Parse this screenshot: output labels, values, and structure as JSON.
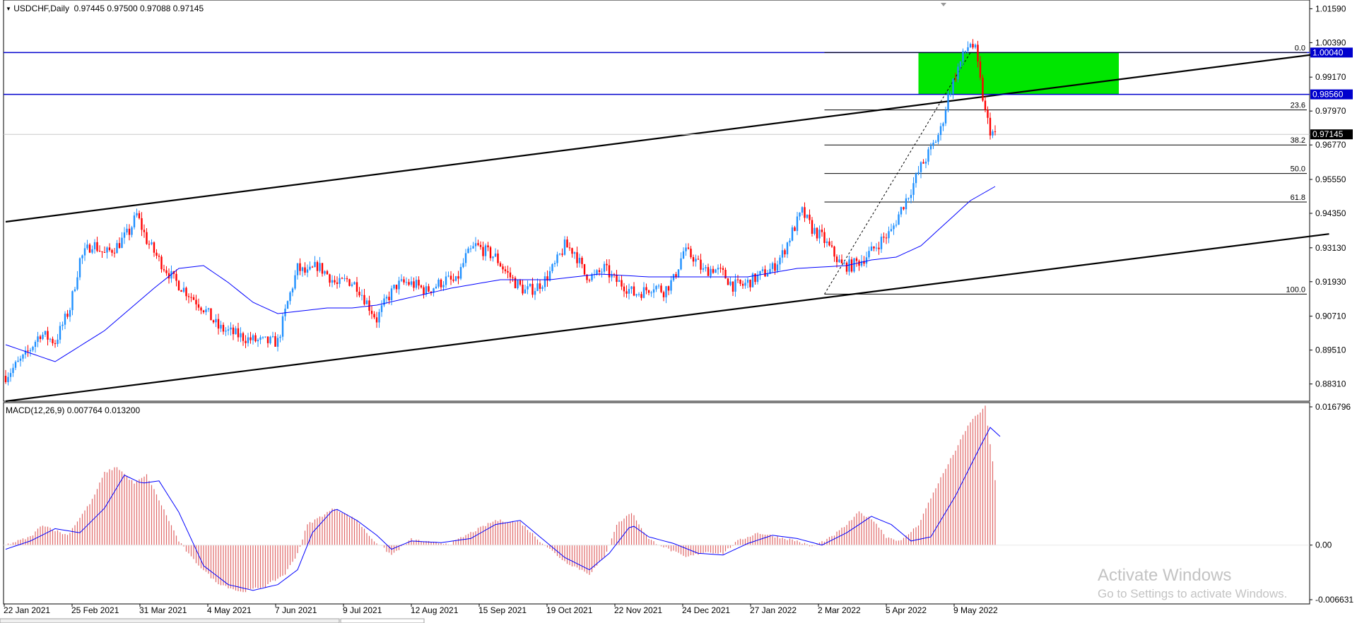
{
  "header": {
    "symbol_timeframe": "USDCHF,Daily",
    "ohlc": "0.97445 0.97500 0.97088 0.97145"
  },
  "macd": {
    "label": "MACD(12,26,9) 0.007764 0.013200",
    "scale": [
      "0.016796",
      "0.00",
      "-0.006631"
    ]
  },
  "watermark": {
    "title": "Activate Windows",
    "subtitle": "Go to Settings to activate Windows."
  },
  "colors": {
    "bull": "#1e90ff",
    "bear": "#ff0000",
    "ma": "#0000ff",
    "hline": "#0000cd",
    "zone": "#00e600",
    "macd_hist": "#e06666",
    "signal": "#0000ff"
  },
  "chart_data": [
    {
      "type": "candlestick",
      "symbol": "USDCHF",
      "timeframe": "Daily",
      "ylim": [
        0.877,
        1.019
      ],
      "price_ticks": [
        "1.01590",
        "1.00390",
        "0.99170",
        "0.97970",
        "0.96770",
        "0.95550",
        "0.94350",
        "0.93130",
        "0.91930",
        "0.90710",
        "0.89510",
        "0.88310"
      ],
      "date_ticks": [
        "22 Jan 2021",
        "25 Feb 2021",
        "31 Mar 2021",
        "4 May 2021",
        "7 Jun 2021",
        "9 Jul 2021",
        "12 Aug 2021",
        "15 Sep 2021",
        "19 Oct 2021",
        "22 Nov 2021",
        "24 Dec 2021",
        "27 Jan 2022",
        "2 Mar 2022",
        "5 Apr 2022",
        "9 May 2022"
      ],
      "close_path": [
        [
          0,
          0.886
        ],
        [
          8,
          0.893
        ],
        [
          14,
          0.901
        ],
        [
          20,
          0.898
        ],
        [
          26,
          0.91
        ],
        [
          30,
          0.927
        ],
        [
          35,
          0.933
        ],
        [
          40,
          0.929
        ],
        [
          45,
          0.932
        ],
        [
          50,
          0.937
        ],
        [
          53,
          0.943
        ],
        [
          57,
          0.934
        ],
        [
          62,
          0.927
        ],
        [
          68,
          0.92
        ],
        [
          74,
          0.915
        ],
        [
          80,
          0.91
        ],
        [
          86,
          0.903
        ],
        [
          92,
          0.901
        ],
        [
          98,
          0.899
        ],
        [
          104,
          0.898
        ],
        [
          110,
          0.898
        ],
        [
          114,
          0.912
        ],
        [
          118,
          0.924
        ],
        [
          122,
          0.922
        ],
        [
          126,
          0.925
        ],
        [
          130,
          0.922
        ],
        [
          134,
          0.918
        ],
        [
          138,
          0.92
        ],
        [
          142,
          0.918
        ],
        [
          146,
          0.912
        ],
        [
          150,
          0.906
        ],
        [
          154,
          0.913
        ],
        [
          158,
          0.918
        ],
        [
          162,
          0.919
        ],
        [
          166,
          0.918
        ],
        [
          170,
          0.916
        ],
        [
          174,
          0.918
        ],
        [
          178,
          0.92
        ],
        [
          182,
          0.919
        ],
        [
          186,
          0.928
        ],
        [
          190,
          0.932
        ],
        [
          194,
          0.93
        ],
        [
          198,
          0.928
        ],
        [
          202,
          0.923
        ],
        [
          206,
          0.919
        ],
        [
          210,
          0.916
        ],
        [
          214,
          0.917
        ],
        [
          218,
          0.92
        ],
        [
          222,
          0.925
        ],
        [
          226,
          0.932
        ],
        [
          230,
          0.93
        ],
        [
          234,
          0.922
        ],
        [
          238,
          0.921
        ],
        [
          242,
          0.924
        ],
        [
          246,
          0.92
        ],
        [
          250,
          0.918
        ],
        [
          254,
          0.915
        ],
        [
          258,
          0.916
        ],
        [
          262,
          0.918
        ],
        [
          266,
          0.916
        ],
        [
          270,
          0.92
        ],
        [
          274,
          0.93
        ],
        [
          278,
          0.928
        ],
        [
          282,
          0.923
        ],
        [
          286,
          0.924
        ],
        [
          290,
          0.922
        ],
        [
          294,
          0.918
        ],
        [
          298,
          0.918
        ],
        [
          302,
          0.92
        ],
        [
          306,
          0.922
        ],
        [
          310,
          0.924
        ],
        [
          314,
          0.929
        ],
        [
          318,
          0.937
        ],
        [
          322,
          0.944
        ],
        [
          326,
          0.938
        ],
        [
          330,
          0.935
        ],
        [
          334,
          0.93
        ],
        [
          338,
          0.925
        ],
        [
          342,
          0.925
        ],
        [
          346,
          0.927
        ],
        [
          350,
          0.93
        ],
        [
          354,
          0.934
        ],
        [
          358,
          0.937
        ],
        [
          362,
          0.945
        ],
        [
          366,
          0.952
        ],
        [
          370,
          0.96
        ],
        [
          374,
          0.966
        ],
        [
          378,
          0.973
        ],
        [
          381,
          0.985
        ],
        [
          385,
          0.995
        ],
        [
          388,
          1.001
        ],
        [
          390,
          1.004
        ],
        [
          392,
          1.001
        ],
        [
          394,
          0.99
        ],
        [
          396,
          0.979
        ],
        [
          398,
          0.973
        ],
        [
          400,
          0.971
        ]
      ],
      "ma_path": [
        [
          0,
          0.897
        ],
        [
          20,
          0.891
        ],
        [
          40,
          0.902
        ],
        [
          60,
          0.917
        ],
        [
          70,
          0.924
        ],
        [
          80,
          0.925
        ],
        [
          90,
          0.919
        ],
        [
          100,
          0.912
        ],
        [
          110,
          0.908
        ],
        [
          120,
          0.909
        ],
        [
          130,
          0.91
        ],
        [
          140,
          0.91
        ],
        [
          150,
          0.911
        ],
        [
          160,
          0.913
        ],
        [
          180,
          0.917
        ],
        [
          200,
          0.92
        ],
        [
          220,
          0.92
        ],
        [
          240,
          0.922
        ],
        [
          260,
          0.921
        ],
        [
          280,
          0.921
        ],
        [
          300,
          0.921
        ],
        [
          320,
          0.924
        ],
        [
          340,
          0.925
        ],
        [
          350,
          0.927
        ],
        [
          360,
          0.928
        ],
        [
          370,
          0.932
        ],
        [
          380,
          0.94
        ],
        [
          390,
          0.948
        ],
        [
          400,
          0.953
        ]
      ],
      "horizontal_levels": [
        "1.00040",
        "0.98560"
      ],
      "current_price": "0.97145",
      "fibonacci": [
        {
          "level": "0.0",
          "price": 1.0004
        },
        {
          "level": "23.6",
          "price": 0.9801
        },
        {
          "level": "38.2",
          "price": 0.9677
        },
        {
          "level": "50.0",
          "price": 0.9576
        },
        {
          "level": "61.8",
          "price": 0.9475
        },
        {
          "level": "100.0",
          "price": 0.9149
        }
      ],
      "channel_upper": [
        [
          0,
          0.9405
        ],
        [
          535,
          1.0004
        ]
      ],
      "channel_lower": [
        [
          0,
          0.877
        ],
        [
          535,
          0.9362
        ]
      ],
      "supply_zone": {
        "from_index": 369,
        "to_index": 450,
        "top": 1.0004,
        "bottom": 0.9856
      }
    },
    {
      "type": "bar",
      "name": "MACD(12,26,9)",
      "main": 0.007764,
      "signal": 0.0132,
      "ylim": [
        -0.006631,
        0.016796
      ],
      "hist_path": [
        [
          0,
          0.0
        ],
        [
          10,
          0.001
        ],
        [
          15,
          0.0025
        ],
        [
          20,
          0.0018
        ],
        [
          25,
          0.0012
        ],
        [
          35,
          0.0055
        ],
        [
          40,
          0.0088
        ],
        [
          45,
          0.0095
        ],
        [
          52,
          0.0075
        ],
        [
          57,
          0.0085
        ],
        [
          62,
          0.0055
        ],
        [
          70,
          0.0005
        ],
        [
          75,
          -0.0015
        ],
        [
          85,
          -0.0045
        ],
        [
          95,
          -0.0057
        ],
        [
          105,
          -0.005
        ],
        [
          113,
          -0.0035
        ],
        [
          118,
          -0.001
        ],
        [
          122,
          0.0025
        ],
        [
          133,
          0.0045
        ],
        [
          142,
          0.003
        ],
        [
          148,
          0.0008
        ],
        [
          156,
          -0.0012
        ],
        [
          164,
          0.0007
        ],
        [
          172,
          0.0003
        ],
        [
          180,
          0.0002
        ],
        [
          188,
          0.0015
        ],
        [
          198,
          0.003
        ],
        [
          208,
          0.0028
        ],
        [
          216,
          0.0005
        ],
        [
          226,
          -0.002
        ],
        [
          236,
          -0.0035
        ],
        [
          242,
          -0.0015
        ],
        [
          247,
          0.0025
        ],
        [
          253,
          0.004
        ],
        [
          260,
          0.0007
        ],
        [
          268,
          -0.0005
        ],
        [
          275,
          -0.0015
        ],
        [
          283,
          -0.0008
        ],
        [
          290,
          -0.001
        ],
        [
          296,
          0.0005
        ],
        [
          304,
          0.0015
        ],
        [
          312,
          0.001
        ],
        [
          320,
          0.0005
        ],
        [
          326,
          -0.0002
        ],
        [
          334,
          0.001
        ],
        [
          340,
          0.0025
        ],
        [
          345,
          0.004
        ],
        [
          351,
          0.003
        ],
        [
          356,
          0.001
        ],
        [
          362,
          0.0005
        ],
        [
          369,
          0.0025
        ],
        [
          376,
          0.007
        ],
        [
          383,
          0.011
        ],
        [
          390,
          0.015
        ],
        [
          396,
          0.0168
        ],
        [
          400,
          0.0078
        ]
      ],
      "signal_path": [
        [
          0,
          -0.0005
        ],
        [
          10,
          0.0005
        ],
        [
          20,
          0.002
        ],
        [
          30,
          0.0015
        ],
        [
          40,
          0.0045
        ],
        [
          48,
          0.0085
        ],
        [
          55,
          0.0075
        ],
        [
          62,
          0.0078
        ],
        [
          70,
          0.004
        ],
        [
          80,
          -0.0025
        ],
        [
          90,
          -0.0048
        ],
        [
          100,
          -0.0055
        ],
        [
          110,
          -0.0048
        ],
        [
          118,
          -0.003
        ],
        [
          124,
          0.0015
        ],
        [
          133,
          0.0045
        ],
        [
          142,
          0.003
        ],
        [
          150,
          0.0012
        ],
        [
          156,
          -0.0005
        ],
        [
          164,
          0.0005
        ],
        [
          176,
          0.0003
        ],
        [
          188,
          0.0008
        ],
        [
          198,
          0.0025
        ],
        [
          208,
          0.003
        ],
        [
          216,
          0.001
        ],
        [
          226,
          -0.0015
        ],
        [
          236,
          -0.003
        ],
        [
          244,
          -0.001
        ],
        [
          253,
          0.0025
        ],
        [
          260,
          0.001
        ],
        [
          270,
          0.0002
        ],
        [
          280,
          -0.001
        ],
        [
          290,
          -0.0012
        ],
        [
          300,
          0.0002
        ],
        [
          310,
          0.0012
        ],
        [
          320,
          0.0008
        ],
        [
          330,
          0.0
        ],
        [
          340,
          0.0015
        ],
        [
          350,
          0.0035
        ],
        [
          358,
          0.0025
        ],
        [
          366,
          0.0005
        ],
        [
          374,
          0.001
        ],
        [
          384,
          0.006
        ],
        [
          394,
          0.012
        ],
        [
          398,
          0.0143
        ],
        [
          402,
          0.0132
        ]
      ]
    }
  ]
}
